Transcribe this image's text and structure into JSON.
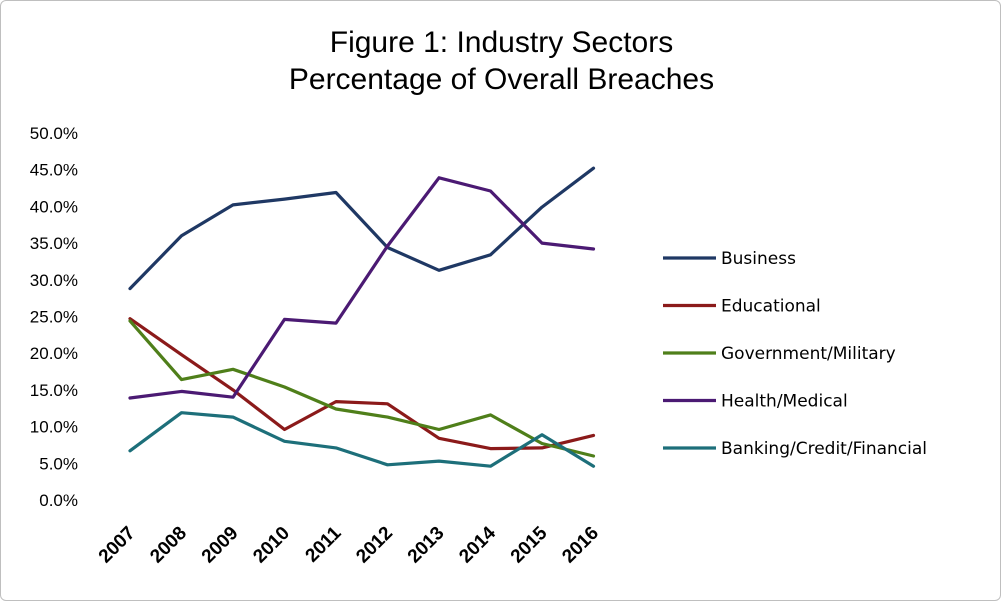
{
  "chart_data": {
    "type": "line",
    "title_lines": [
      "Figure 1:  Industry  Sectors",
      "Percentage of Overall Breaches"
    ],
    "xlabel": "",
    "ylabel": "",
    "x": [
      "2007",
      "2008",
      "2009",
      "2010",
      "2011",
      "2012",
      "2013",
      "2014",
      "2015",
      "2016"
    ],
    "y_ticks": [
      "0.0%",
      "5.0%",
      "10.0%",
      "15.0%",
      "20.0%",
      "25.0%",
      "30.0%",
      "35.0%",
      "40.0%",
      "45.0%",
      "50.0%"
    ],
    "ylim": [
      0,
      50
    ],
    "grid": false,
    "legend_position": "right",
    "series": [
      {
        "name": "Business",
        "color": "#1f3864",
        "values": [
          28.8,
          36.0,
          40.2,
          41.0,
          41.9,
          34.4,
          31.3,
          33.4,
          39.9,
          45.2
        ]
      },
      {
        "name": "Educational",
        "color": "#8b1a1a",
        "values": [
          24.7,
          19.8,
          15.0,
          9.6,
          13.4,
          13.1,
          8.4,
          7.0,
          7.1,
          8.8
        ]
      },
      {
        "name": "Government/Military",
        "color": "#4f7f1a",
        "values": [
          24.4,
          16.4,
          17.8,
          15.4,
          12.4,
          11.3,
          9.6,
          11.6,
          7.7,
          6.0
        ]
      },
      {
        "name": "Health/Medical",
        "color": "#4b1a73",
        "values": [
          13.9,
          14.8,
          14.0,
          24.6,
          24.1,
          34.6,
          43.9,
          42.1,
          35.0,
          34.2
        ]
      },
      {
        "name": "Banking/Credit/Financial",
        "color": "#1d6f7a",
        "values": [
          6.7,
          11.9,
          11.3,
          8.0,
          7.1,
          4.8,
          5.3,
          4.6,
          8.9,
          4.6
        ]
      }
    ]
  }
}
